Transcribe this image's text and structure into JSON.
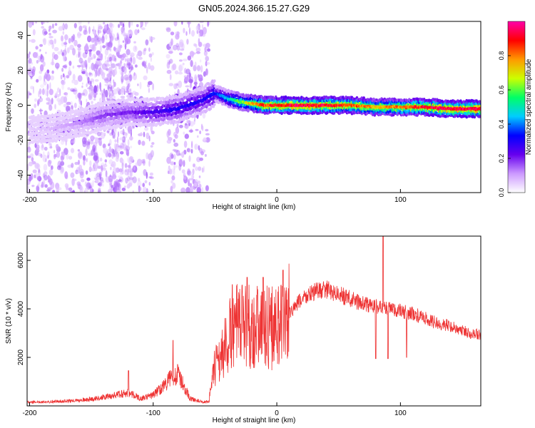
{
  "title": "GN05.2024.366.15.27.G29",
  "colorbar": {
    "label": "Normalized spectral amplitude",
    "ticks": [
      {
        "value": 0.0,
        "label": "0.0"
      },
      {
        "value": 0.2,
        "label": "0.2"
      },
      {
        "value": 0.4,
        "label": "0.4"
      },
      {
        "value": 0.6,
        "label": "0.6"
      },
      {
        "value": 0.8,
        "label": "0.8"
      }
    ],
    "colors": [
      "#ffffff",
      "#cc99ff",
      "#6600ee",
      "#0000ff",
      "#00ccff",
      "#00ff66",
      "#ccff00",
      "#ff9900",
      "#ff0000",
      "#ff00aa"
    ]
  },
  "chart_data": [
    {
      "type": "heatmap",
      "xlabel": "Height of straight line (km)",
      "ylabel": "Frequency (Hz)",
      "xlim": [
        -202,
        165
      ],
      "ylim": [
        -50,
        48
      ],
      "xticks": [
        {
          "value": -200,
          "label": "-200"
        },
        {
          "value": -100,
          "label": "-100"
        },
        {
          "value": 0,
          "label": "0"
        },
        {
          "value": 100,
          "label": "100"
        }
      ],
      "yticks": [
        {
          "value": -40,
          "label": "-40"
        },
        {
          "value": -20,
          "label": "-20"
        },
        {
          "value": 0,
          "label": "0"
        },
        {
          "value": 20,
          "label": "20"
        },
        {
          "value": 40,
          "label": "40"
        }
      ],
      "ridge": {
        "x": [
          -200,
          -180,
          -160,
          -140,
          -120,
          -100,
          -80,
          -60,
          -50,
          -40,
          -30,
          -20,
          -10,
          0,
          20,
          40,
          60,
          80,
          100,
          120,
          140,
          165
        ],
        "frequency": [
          -14,
          -13,
          -10,
          -6,
          -4,
          -4,
          -2,
          3,
          7,
          4,
          2,
          1,
          0,
          0,
          0,
          0,
          0,
          -1,
          -1,
          -1,
          -2,
          -2
        ],
        "amplitude": [
          0.05,
          0.08,
          0.12,
          0.18,
          0.2,
          0.25,
          0.3,
          0.3,
          0.35,
          0.45,
          0.6,
          0.75,
          0.85,
          0.9,
          0.92,
          0.88,
          0.85,
          0.75,
          0.8,
          0.9,
          0.92,
          0.95
        ]
      }
    },
    {
      "type": "line",
      "xlabel": "Height of straight line (km)",
      "ylabel": "SNR (10 * v/v)",
      "xlim": [
        -202,
        165
      ],
      "ylim": [
        0,
        7000
      ],
      "xticks": [
        {
          "value": -200,
          "label": "-200"
        },
        {
          "value": -100,
          "label": "-100"
        },
        {
          "value": 0,
          "label": "0"
        },
        {
          "value": 100,
          "label": "100"
        }
      ],
      "yticks": [
        {
          "value": 2000,
          "label": "2000"
        },
        {
          "value": 4000,
          "label": "4000"
        },
        {
          "value": 6000,
          "label": "6000"
        }
      ],
      "series": [
        {
          "color": "#ee3333",
          "x": [
            -202,
            -180,
            -160,
            -140,
            -120,
            -110,
            -100,
            -90,
            -85,
            -80,
            -75,
            -70,
            -60,
            -55,
            -50,
            -40,
            -35,
            -30,
            -25,
            -20,
            -15,
            -10,
            -5,
            0,
            5,
            10,
            20,
            30,
            40,
            50,
            60,
            70,
            80,
            90,
            100,
            110,
            120,
            130,
            140,
            150,
            165
          ],
          "values": [
            150,
            180,
            220,
            350,
            550,
            300,
            450,
            900,
            1200,
            1300,
            800,
            300,
            150,
            200,
            1600,
            2600,
            3300,
            3200,
            3500,
            3200,
            3300,
            3500,
            3200,
            3400,
            3300,
            3800,
            4400,
            4700,
            4800,
            4600,
            4400,
            4200,
            4100,
            4000,
            3900,
            3800,
            3600,
            3400,
            3300,
            3100,
            2900
          ],
          "spikes": [
            {
              "x": -120,
              "value": 1450
            },
            {
              "x": -84,
              "value": 2700
            },
            {
              "x": -36,
              "value": 5000
            },
            {
              "x": -24,
              "value": 5300
            },
            {
              "x": -11,
              "value": 5300
            },
            {
              "x": 5,
              "value": 5600
            },
            {
              "x": 80,
              "value": 1950
            },
            {
              "x": 86,
              "value": 7000
            },
            {
              "x": 90,
              "value": 1950
            },
            {
              "x": 105,
              "value": 2000
            }
          ]
        }
      ]
    }
  ]
}
